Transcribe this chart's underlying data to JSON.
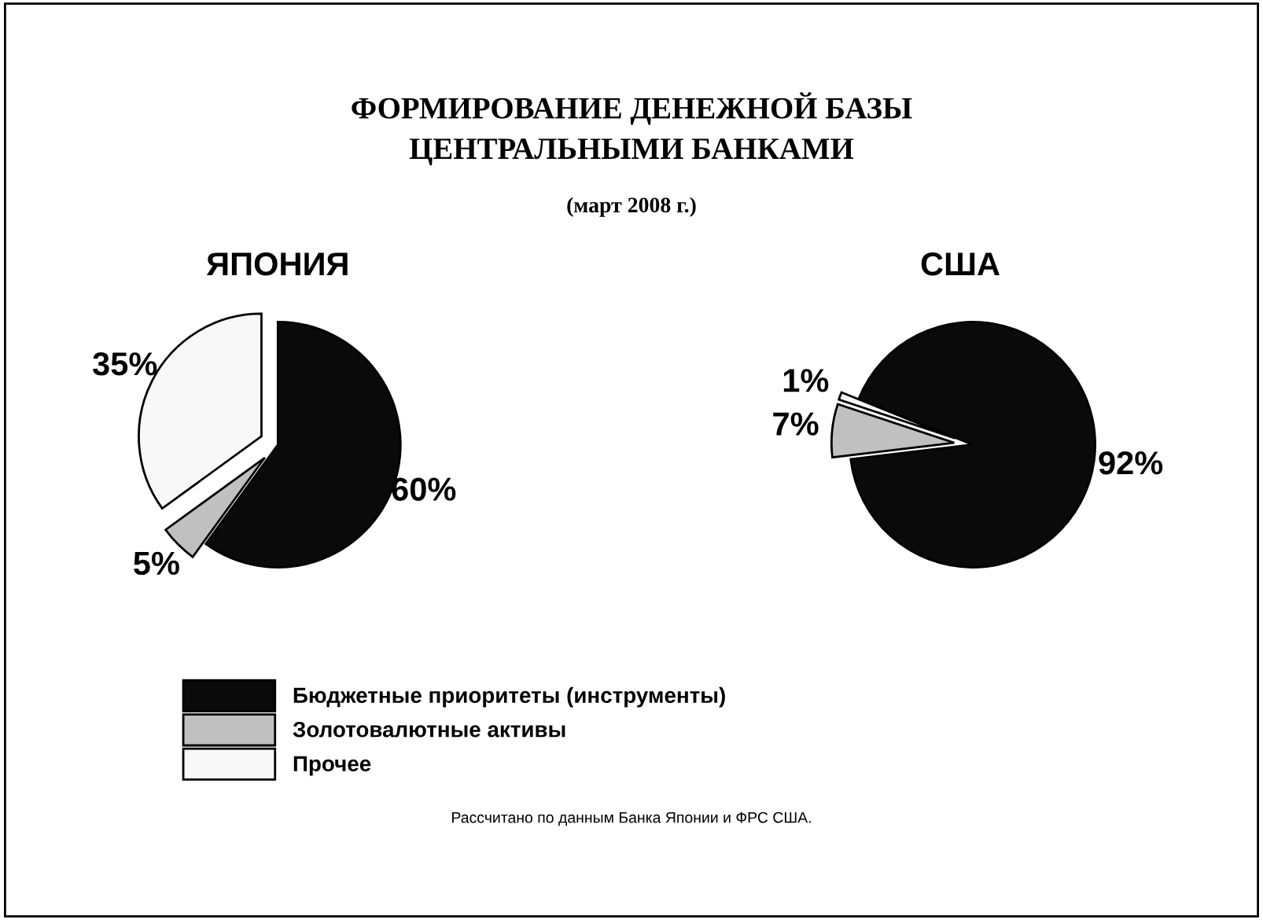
{
  "chart_data": [
    {
      "type": "pie",
      "title": "ЯПОНИЯ",
      "categories": [
        "Бюджетные приоритеты (инструменты)",
        "Золотовалютные активы",
        "Прочее"
      ],
      "values": [
        60,
        5,
        35
      ],
      "colors": [
        "#0a0a0a",
        "#c0c0c0",
        "#f8f8f8"
      ],
      "value_labels": [
        "60%",
        "5%",
        "35%"
      ],
      "legend": "bottom",
      "annotations": [
        "ФОРМИРОВАНИЕ ДЕНЕЖНОЙ БАЗЫ\nЦЕНТРАЛЬНЫМИ БАНКАМИ",
        "(март 2008 г.)",
        "Рассчитано по данным Банка Японии и ФРС США."
      ]
    },
    {
      "type": "pie",
      "title": "США",
      "categories": [
        null,
        null,
        null
      ],
      "values": [
        92,
        7,
        1
      ],
      "colors": [
        "#0a0a0a",
        "#c0c0c0",
        "#f8f8f8"
      ],
      "value_labels": [
        "92%",
        "7%",
        "1%"
      ]
    }
  ]
}
